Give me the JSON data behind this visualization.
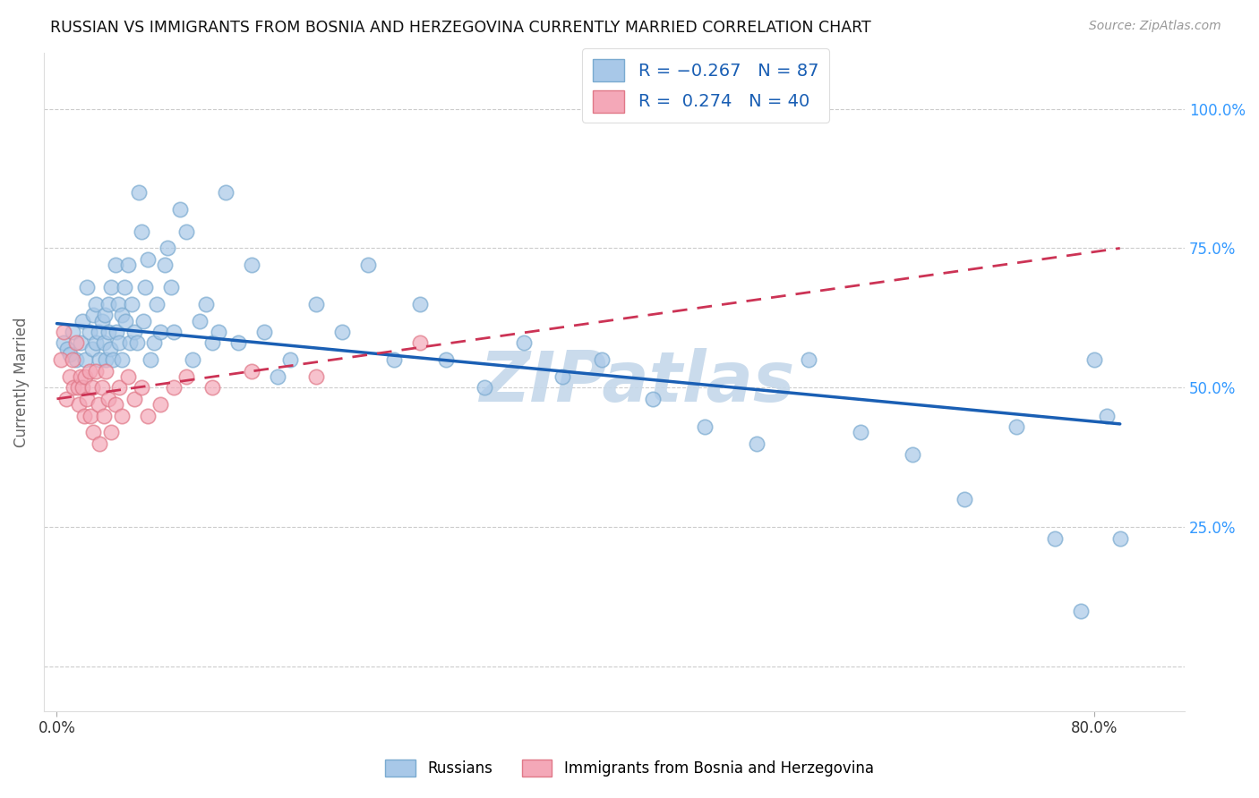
{
  "title": "RUSSIAN VS IMMIGRANTS FROM BOSNIA AND HERZEGOVINA CURRENTLY MARRIED CORRELATION CHART",
  "source": "Source: ZipAtlas.com",
  "ylabel": "Currently Married",
  "russians_label": "Russians",
  "bosnia_label": "Immigrants from Bosnia and Herzegovina",
  "russian_color": "#a8c8e8",
  "russia_edge_color": "#7aaad0",
  "bosnia_color": "#f4a8b8",
  "bosnia_edge_color": "#e07888",
  "russian_line_color": "#1a5fb4",
  "bosnia_line_color": "#cc3355",
  "watermark": "ZIPatlas",
  "watermark_color": "#c5d8ea",
  "russian_x": [
    0.005,
    0.008,
    0.01,
    0.012,
    0.015,
    0.018,
    0.02,
    0.022,
    0.023,
    0.025,
    0.027,
    0.028,
    0.03,
    0.03,
    0.032,
    0.033,
    0.035,
    0.036,
    0.037,
    0.038,
    0.04,
    0.04,
    0.041,
    0.042,
    0.043,
    0.045,
    0.046,
    0.047,
    0.048,
    0.05,
    0.05,
    0.052,
    0.053,
    0.055,
    0.056,
    0.058,
    0.06,
    0.062,
    0.063,
    0.065,
    0.067,
    0.068,
    0.07,
    0.072,
    0.075,
    0.077,
    0.08,
    0.083,
    0.085,
    0.088,
    0.09,
    0.095,
    0.1,
    0.105,
    0.11,
    0.115,
    0.12,
    0.125,
    0.13,
    0.14,
    0.15,
    0.16,
    0.17,
    0.18,
    0.2,
    0.22,
    0.24,
    0.26,
    0.28,
    0.3,
    0.33,
    0.36,
    0.39,
    0.42,
    0.46,
    0.5,
    0.54,
    0.58,
    0.62,
    0.66,
    0.7,
    0.74,
    0.77,
    0.79,
    0.8,
    0.81,
    0.82
  ],
  "russian_y": [
    0.58,
    0.57,
    0.56,
    0.6,
    0.55,
    0.58,
    0.62,
    0.55,
    0.68,
    0.6,
    0.57,
    0.63,
    0.65,
    0.58,
    0.6,
    0.55,
    0.62,
    0.58,
    0.63,
    0.55,
    0.65,
    0.6,
    0.57,
    0.68,
    0.55,
    0.72,
    0.6,
    0.65,
    0.58,
    0.63,
    0.55,
    0.68,
    0.62,
    0.72,
    0.58,
    0.65,
    0.6,
    0.58,
    0.85,
    0.78,
    0.62,
    0.68,
    0.73,
    0.55,
    0.58,
    0.65,
    0.6,
    0.72,
    0.75,
    0.68,
    0.6,
    0.82,
    0.78,
    0.55,
    0.62,
    0.65,
    0.58,
    0.6,
    0.85,
    0.58,
    0.72,
    0.6,
    0.52,
    0.55,
    0.65,
    0.6,
    0.72,
    0.55,
    0.65,
    0.55,
    0.5,
    0.58,
    0.52,
    0.55,
    0.48,
    0.43,
    0.4,
    0.55,
    0.42,
    0.38,
    0.3,
    0.43,
    0.23,
    0.1,
    0.55,
    0.45,
    0.23
  ],
  "bosnia_x": [
    0.003,
    0.005,
    0.007,
    0.01,
    0.012,
    0.013,
    0.015,
    0.016,
    0.017,
    0.018,
    0.02,
    0.021,
    0.022,
    0.023,
    0.025,
    0.026,
    0.027,
    0.028,
    0.03,
    0.032,
    0.033,
    0.035,
    0.036,
    0.038,
    0.04,
    0.042,
    0.045,
    0.048,
    0.05,
    0.055,
    0.06,
    0.065,
    0.07,
    0.08,
    0.09,
    0.1,
    0.12,
    0.15,
    0.2,
    0.28
  ],
  "bosnia_y": [
    0.55,
    0.6,
    0.48,
    0.52,
    0.55,
    0.5,
    0.58,
    0.5,
    0.47,
    0.52,
    0.5,
    0.45,
    0.52,
    0.48,
    0.53,
    0.45,
    0.5,
    0.42,
    0.53,
    0.47,
    0.4,
    0.5,
    0.45,
    0.53,
    0.48,
    0.42,
    0.47,
    0.5,
    0.45,
    0.52,
    0.48,
    0.5,
    0.45,
    0.47,
    0.5,
    0.52,
    0.5,
    0.53,
    0.52,
    0.58
  ],
  "xlim": [
    -0.01,
    0.87
  ],
  "ylim": [
    -0.08,
    1.1
  ],
  "x_ticks": [
    0.0,
    0.8
  ],
  "x_tick_labels": [
    "0.0%",
    "80.0%"
  ],
  "y_ticks": [
    0.0,
    0.25,
    0.5,
    0.75,
    1.0
  ],
  "y_tick_labels_right": [
    "",
    "25.0%",
    "50.0%",
    "75.0%",
    "100.0%"
  ],
  "right_tick_color": "#3399ff",
  "russian_line_x0": 0.0,
  "russian_line_x1": 0.82,
  "russian_line_y0": 0.615,
  "russian_line_y1": 0.435,
  "bosnia_line_x0": 0.0,
  "bosnia_line_x1": 0.82,
  "bosnia_line_y0": 0.48,
  "bosnia_line_y1": 0.75
}
